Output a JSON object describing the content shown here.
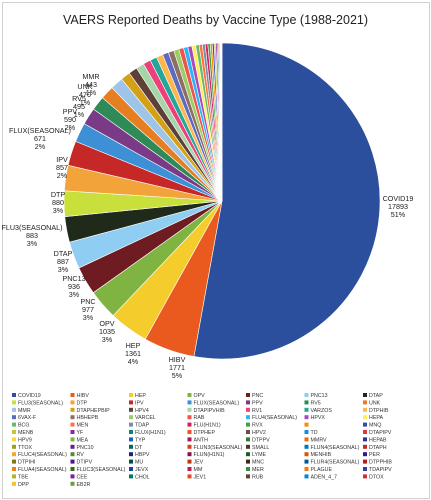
{
  "chart_data": {
    "type": "pie",
    "title": "VAERS Reported Deaths by Vaccine Type (1988-2021)",
    "slices": [
      {
        "label": "COVID19",
        "value": 17893,
        "pct": "51%",
        "color": "#2b4f9c"
      },
      {
        "label": "HIBV",
        "value": 1771,
        "pct": "5%",
        "color": "#ea5a1f"
      },
      {
        "label": "HEP",
        "value": 1361,
        "pct": "4%",
        "color": "#f4cd2c"
      },
      {
        "label": "OPV",
        "value": 1035,
        "pct": "3%",
        "color": "#7fb342"
      },
      {
        "label": "PNC",
        "value": 977,
        "pct": "3%",
        "color": "#6e1c22"
      },
      {
        "label": "PNC13",
        "value": 936,
        "pct": "3%",
        "color": "#8fcdf2"
      },
      {
        "label": "DTAP",
        "value": 887,
        "pct": "3%",
        "color": "#1f2a1a"
      },
      {
        "label": "FLU3(SEASONAL)",
        "value": 883,
        "pct": "3%",
        "color": "#c8df3c"
      },
      {
        "label": "DTP",
        "value": 880,
        "pct": "3%",
        "color": "#f2a33a"
      },
      {
        "label": "IPV",
        "value": 857,
        "pct": "2%",
        "color": "#c62828"
      },
      {
        "label": "FLUX(SEASONAL)",
        "value": 671,
        "pct": "2%",
        "color": "#3d8fd6"
      },
      {
        "label": "PPV",
        "value": 590,
        "pct": "2%",
        "color": "#7b3a86"
      },
      {
        "label": "RV5",
        "value": 495,
        "pct": "1%",
        "color": "#2e8b57"
      },
      {
        "label": "UNK",
        "value": 470,
        "pct": "1%",
        "color": "#e67e22"
      },
      {
        "label": "MMR",
        "value": 443,
        "pct": "1%",
        "color": "#9ec5e8"
      },
      {
        "label": "",
        "value": 330,
        "pct": "",
        "color": "#d4a017"
      },
      {
        "label": "",
        "value": 300,
        "pct": "",
        "color": "#5d4037"
      },
      {
        "label": "",
        "value": 280,
        "pct": "",
        "color": "#a5d6a7"
      },
      {
        "label": "",
        "value": 260,
        "pct": "",
        "color": "#ec407a"
      },
      {
        "label": "",
        "value": 240,
        "pct": "",
        "color": "#26a69a"
      },
      {
        "label": "",
        "value": 225,
        "pct": "",
        "color": "#ffb74d"
      },
      {
        "label": "",
        "value": 210,
        "pct": "",
        "color": "#5c6bc0"
      },
      {
        "label": "",
        "value": 195,
        "pct": "",
        "color": "#8d6e63"
      },
      {
        "label": "",
        "value": 180,
        "pct": "",
        "color": "#9ccc65"
      },
      {
        "label": "",
        "value": 165,
        "pct": "",
        "color": "#ef5350"
      },
      {
        "label": "",
        "value": 150,
        "pct": "",
        "color": "#29b6f6"
      },
      {
        "label": "",
        "value": 140,
        "pct": "",
        "color": "#ab47bc"
      },
      {
        "label": "",
        "value": 130,
        "pct": "",
        "color": "#ffee58"
      },
      {
        "label": "",
        "value": 120,
        "pct": "",
        "color": "#66bb6a"
      },
      {
        "label": "",
        "value": 110,
        "pct": "",
        "color": "#ff7043"
      },
      {
        "label": "",
        "value": 100,
        "pct": "",
        "color": "#78909c"
      },
      {
        "label": "",
        "value": 90,
        "pct": "",
        "color": "#d81b60"
      },
      {
        "label": "",
        "value": 80,
        "pct": "",
        "color": "#43a047"
      },
      {
        "label": "",
        "value": 72,
        "pct": "",
        "color": "#fb8c00"
      },
      {
        "label": "",
        "value": 64,
        "pct": "",
        "color": "#3949ab"
      },
      {
        "label": "",
        "value": 56,
        "pct": "",
        "color": "#c0ca33"
      },
      {
        "label": "",
        "value": 48,
        "pct": "",
        "color": "#8e24aa"
      },
      {
        "label": "",
        "value": 40,
        "pct": "",
        "color": "#00897b"
      },
      {
        "label": "",
        "value": 34,
        "pct": "",
        "color": "#f4511e"
      },
      {
        "label": "",
        "value": 28,
        "pct": "",
        "color": "#6d4c41"
      },
      {
        "label": "",
        "value": 22,
        "pct": "",
        "color": "#1e88e5"
      },
      {
        "label": "",
        "value": 18,
        "pct": "",
        "color": "#e53935"
      },
      {
        "label": "",
        "value": 14,
        "pct": "",
        "color": "#fdd835"
      },
      {
        "label": "",
        "value": 10,
        "pct": "",
        "color": "#7cb342"
      }
    ],
    "legend_position": "bottom",
    "legend": [
      "COVID19",
      "HIBV",
      "HEP",
      "OPV",
      "PNC",
      "PNC13",
      "DTAP",
      "FLU3(SEASONAL)",
      "DTP",
      "IPV",
      "FLUX(SEASONAL)",
      "PPV",
      "RV5",
      "UNK",
      "MMR",
      "DTAPHEPBIP",
      "HPV4",
      "DTAPIPVHIB",
      "RV1",
      "VARZOS",
      "DTPHIB",
      "6VAX-F",
      "HBHEPB",
      "VARCEL",
      "RAB",
      "FLU4(SEASONAL)",
      "HPVX",
      "HEPA",
      "BCG",
      "MEN",
      "TDAP",
      "FLU(H1N1)",
      "RVX",
      "",
      "MNQ",
      "MENB",
      "YF",
      "FLUX(H1N1)",
      "DTPHEP",
      "HPV2",
      "TD",
      "DTAPIPV",
      "HPV9",
      "MEA",
      "TYP",
      "ANTH",
      "DTPPV",
      "MMRV",
      "HEPAB",
      "TTOX",
      "PNC10",
      "DT",
      "FLUN3(SEASONAL)",
      "SMALL",
      "FLUN4(SEASONAL)",
      "DTAPH",
      "FLUC4(SEASONAL)",
      "RV",
      "HBPV",
      "FLUN(H1N1)",
      "LYME",
      "MENHIB",
      "PER",
      "DTPIHI",
      "DTIPV",
      "MU",
      "JEV",
      "MNC",
      "FLUR4(SEASONAL)",
      "DTPPHIB",
      "FLUA4(SEASONAL)",
      "FLUC3(SEASONAL)",
      "JEVX",
      "MM",
      "MER",
      "PLAGUE",
      "TDAPIPV",
      "TBE",
      "CEE",
      "CHOL",
      "JEV1",
      "RUB",
      "ADEN_4_7",
      "DTOX",
      "DPP",
      "EB2R"
    ],
    "legend_colors": [
      "#2b4f9c",
      "#ea5a1f",
      "#f4cd2c",
      "#7fb342",
      "#6e1c22",
      "#8fcdf2",
      "#1f2a1a",
      "#c8df3c",
      "#f2a33a",
      "#c62828",
      "#3d8fd6",
      "#7b3a86",
      "#2e8b57",
      "#e67e22",
      "#9ec5e8",
      "#d4a017",
      "#5d4037",
      "#a5d6a7",
      "#ec407a",
      "#26a69a",
      "#ffb74d",
      "#5c6bc0",
      "#8d6e63",
      "#9ccc65",
      "#ef5350",
      "#29b6f6",
      "#ab47bc",
      "#ffee58",
      "#66bb6a",
      "#ff7043",
      "#78909c",
      "#d81b60",
      "#43a047",
      "#fb8c00",
      "#3949ab",
      "#c0ca33",
      "#8e24aa",
      "#00897b",
      "#f4511e",
      "#6d4c41",
      "#1e88e5",
      "#e53935",
      "#fdd835",
      "#7cb342",
      "#1565c0",
      "#ad1457",
      "#2e7d32",
      "#ef6c00",
      "#283593",
      "#9e9d24",
      "#6a1b9a",
      "#00695c",
      "#d84315",
      "#4e342e",
      "#0277bd",
      "#c62828",
      "#f9a825",
      "#558b2f",
      "#1a237e",
      "#880e4f",
      "#1b5e20",
      "#e65100",
      "#311b92",
      "#827717",
      "#4a148c",
      "#004d40",
      "#bf360c",
      "#3e2723",
      "#01579b",
      "#b71c1c",
      "#f57f17",
      "#33691e",
      "#0d47a1",
      "#c2185b",
      "#388e3c",
      "#f57c00",
      "#303f9f",
      "#afb42b",
      "#7b1fa2",
      "#00796b",
      "#e64a19",
      "#5d4037",
      "#0288d1",
      "#d32f2f",
      "#fbc02d",
      "#689f38"
    ]
  }
}
